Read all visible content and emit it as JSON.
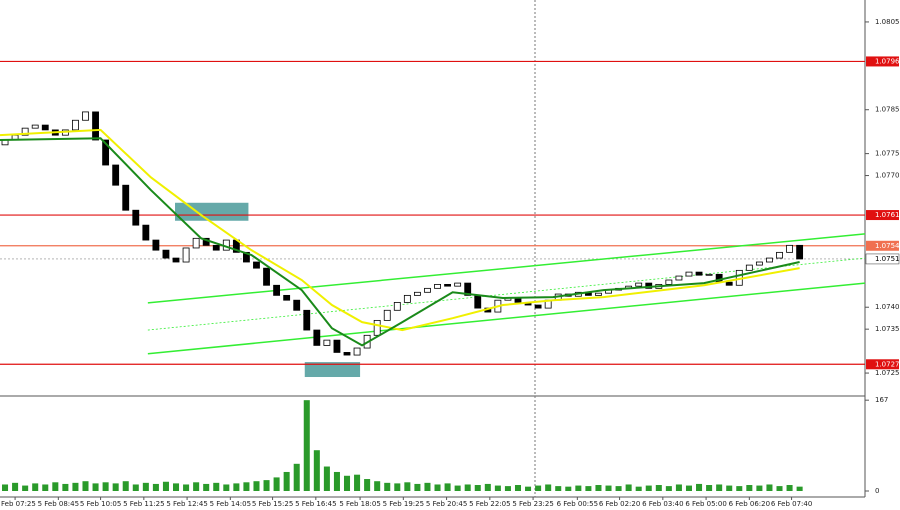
{
  "chart_data": {
    "type": "candlestick",
    "x": [
      0,
      1,
      2,
      3,
      4,
      5,
      6,
      7,
      8,
      9,
      10,
      11,
      12,
      13,
      14,
      15,
      16,
      17,
      18,
      19,
      20,
      21,
      22,
      23,
      24,
      25,
      26,
      27,
      28,
      29,
      30,
      31,
      32,
      33,
      34,
      35,
      36,
      37,
      38,
      39,
      40,
      41,
      42,
      43,
      44,
      45,
      46,
      47,
      48,
      49,
      50,
      51,
      52,
      53,
      54,
      55,
      56,
      57,
      58,
      59,
      60,
      61,
      62,
      63,
      64,
      65,
      66,
      67,
      68,
      69,
      70,
      71,
      72,
      73,
      74,
      75,
      76,
      77,
      78,
      79
    ],
    "open": [
      1.0777,
      1.07781,
      1.07792,
      1.07808,
      1.07815,
      1.07804,
      1.07792,
      1.07804,
      1.07826,
      1.07845,
      1.07781,
      1.07724,
      1.07678,
      1.07621,
      1.07587,
      1.07553,
      1.0753,
      1.07512,
      1.07503,
      1.07535,
      1.07557,
      1.07541,
      1.0753,
      1.07553,
      1.07525,
      1.07503,
      1.07489,
      1.0745,
      1.07427,
      1.07416,
      1.07393,
      1.07348,
      1.07313,
      1.07325,
      1.07297,
      1.07291,
      1.07307,
      1.07336,
      1.0737,
      1.07393,
      1.07411,
      1.07427,
      1.07434,
      1.07443,
      1.07452,
      1.07448,
      1.07455,
      1.07427,
      1.07398,
      1.07389,
      1.07416,
      1.07421,
      1.07411,
      1.07405,
      1.07398,
      1.07416,
      1.0743,
      1.07425,
      1.07434,
      1.07427,
      1.07432,
      1.07439,
      1.07443,
      1.07448,
      1.07455,
      1.07443,
      1.07452,
      1.07462,
      1.07471,
      1.0748,
      1.07473,
      1.07475,
      1.07457,
      1.0745,
      1.07484,
      1.07496,
      1.07503,
      1.07512,
      1.07525,
      1.07541
    ],
    "close": [
      1.07781,
      1.07792,
      1.07808,
      1.07815,
      1.07804,
      1.07792,
      1.07804,
      1.07826,
      1.07845,
      1.07781,
      1.07724,
      1.07678,
      1.07621,
      1.07587,
      1.07553,
      1.0753,
      1.07512,
      1.07503,
      1.07535,
      1.07557,
      1.07541,
      1.0753,
      1.07553,
      1.07525,
      1.07503,
      1.07489,
      1.0745,
      1.07427,
      1.07416,
      1.07393,
      1.07348,
      1.07313,
      1.07325,
      1.07297,
      1.07291,
      1.07307,
      1.07336,
      1.0737,
      1.07393,
      1.07411,
      1.07427,
      1.07434,
      1.07443,
      1.07452,
      1.07448,
      1.07455,
      1.07427,
      1.07398,
      1.07389,
      1.07416,
      1.07421,
      1.07411,
      1.07405,
      1.07398,
      1.07416,
      1.0743,
      1.07425,
      1.07434,
      1.07427,
      1.07432,
      1.07439,
      1.07443,
      1.07448,
      1.07455,
      1.07443,
      1.07452,
      1.07462,
      1.07471,
      1.0748,
      1.07473,
      1.07475,
      1.07457,
      1.0745,
      1.07484,
      1.07496,
      1.07503,
      1.07512,
      1.07525,
      1.07541,
      1.0751
    ],
    "volume": [
      12,
      15,
      10,
      14,
      12,
      16,
      13,
      15,
      18,
      14,
      16,
      14,
      18,
      12,
      15,
      13,
      17,
      14,
      12,
      16,
      13,
      15,
      12,
      14,
      16,
      18,
      20,
      25,
      35,
      50,
      167,
      75,
      45,
      35,
      28,
      30,
      22,
      18,
      15,
      14,
      16,
      13,
      15,
      12,
      14,
      10,
      12,
      11,
      13,
      10,
      9,
      11,
      8,
      10,
      12,
      9,
      8,
      10,
      9,
      11,
      10,
      9,
      12,
      8,
      10,
      11,
      9,
      12,
      10,
      13,
      11,
      12,
      10,
      9,
      11,
      10,
      12,
      9,
      11,
      8
    ],
    "up_color": "#000000",
    "down_color": "#000000",
    "moving_averages": [
      {
        "color": "#f0f000",
        "x": [
          0,
          10,
          15,
          20,
          25,
          30,
          33,
          36,
          40,
          45,
          50,
          55,
          60,
          70,
          79.5
        ],
        "values": [
          1.07792,
          1.07804,
          1.07696,
          1.0761,
          1.0753,
          1.07462,
          1.07405,
          1.07366,
          1.07348,
          1.07375,
          1.07405,
          1.07416,
          1.07423,
          1.0745,
          1.07489
        ]
      },
      {
        "color": "#1a8a1a",
        "x": [
          0,
          10,
          15,
          20,
          25,
          30,
          33,
          36,
          40,
          45,
          50,
          55,
          60,
          70,
          79.5
        ],
        "values": [
          1.07781,
          1.07785,
          1.07667,
          1.07557,
          1.07519,
          1.07439,
          1.07352,
          1.07313,
          1.07366,
          1.07434,
          1.07421,
          1.07423,
          1.07439,
          1.07455,
          1.07503
        ]
      }
    ],
    "trendlines": [
      {
        "color": "#33ee33",
        "dashed": false,
        "x": [
          14.7,
          86
        ],
        "y": [
          1.0741,
          1.07567
        ]
      },
      {
        "color": "#33ee33",
        "dashed": true,
        "x": [
          14.7,
          86
        ],
        "y": [
          1.07348,
          1.07512
        ]
      },
      {
        "color": "#33ee33",
        "dashed": false,
        "x": [
          14.7,
          86
        ],
        "y": [
          1.07294,
          1.07455
        ]
      }
    ],
    "zones": [
      {
        "color": "#4a9a9a",
        "x": [
          17.4,
          24.7
        ],
        "y": [
          1.07597,
          1.07638
        ]
      },
      {
        "color": "#4a9a9a",
        "x": [
          30.3,
          35.8
        ],
        "y": [
          1.07241,
          1.07275
        ]
      }
    ],
    "levels": [
      {
        "value": 1.0796,
        "label": "1.0796",
        "color": "#e01010"
      },
      {
        "value": 1.0761,
        "label": "1.0761",
        "color": "#e01010"
      },
      {
        "value": 1.0754,
        "label": "1.0754",
        "color": "#f07050"
      },
      {
        "value": 1.0751,
        "label": "1.0751",
        "color": "#888888"
      },
      {
        "value": 1.0727,
        "label": "1.0727",
        "color": "#e01010"
      }
    ],
    "xlim": [
      0,
      86
    ],
    "xticks": [
      {
        "value": 1.5,
        "label": "5 Feb 07:25"
      },
      {
        "value": 5.8,
        "label": "5 Feb 08:45"
      },
      {
        "value": 10.0,
        "label": "5 Feb 10:05"
      },
      {
        "value": 14.3,
        "label": "5 Feb 11:25"
      },
      {
        "value": 18.6,
        "label": "5 Feb 12:45"
      },
      {
        "value": 22.9,
        "label": "5 Feb 14:05"
      },
      {
        "value": 27.1,
        "label": "5 Feb 15:25"
      },
      {
        "value": 31.4,
        "label": "5 Feb 16:45"
      },
      {
        "value": 35.8,
        "label": "5 Feb 18:05"
      },
      {
        "value": 40.1,
        "label": "5 Feb 19:25"
      },
      {
        "value": 44.4,
        "label": "5 Feb 20:45"
      },
      {
        "value": 48.7,
        "label": "5 Feb 22:05"
      },
      {
        "value": 53.0,
        "label": "5 Feb 23:25"
      },
      {
        "value": 57.4,
        "label": "6 Feb 00:55"
      },
      {
        "value": 61.6,
        "label": "6 Feb 02:20"
      },
      {
        "value": 65.9,
        "label": "6 Feb 03:40"
      },
      {
        "value": 70.2,
        "label": "6 Feb 05:00"
      },
      {
        "value": 74.5,
        "label": "6 Feb 06:20"
      },
      {
        "value": 78.7,
        "label": "6 Feb 07:40"
      }
    ],
    "ylim": [
      1.072,
      1.081
    ],
    "yticks": [
      {
        "value": 1.0805,
        "label": "1.0805"
      },
      {
        "value": 1.0785,
        "label": "1.0785"
      },
      {
        "value": 1.0775,
        "label": "1.0775"
      },
      {
        "value": 1.077,
        "label": "1.0770"
      },
      {
        "value": 1.074,
        "label": "1.0740"
      },
      {
        "value": 1.0735,
        "label": "1.0735"
      },
      {
        "value": 1.0725,
        "label": "1.0725"
      }
    ],
    "volume_ylim": [
      0,
      171
    ],
    "volume_yticks": [
      0,
      167
    ]
  }
}
